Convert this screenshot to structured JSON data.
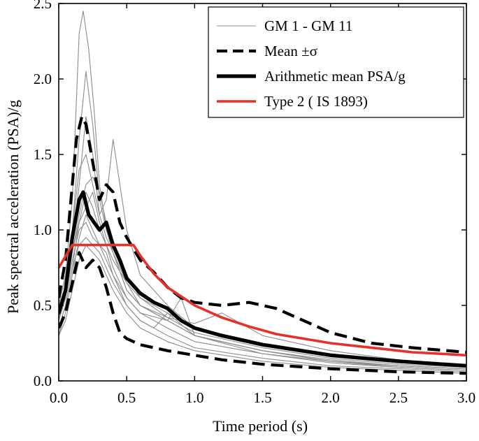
{
  "chart_data": {
    "type": "line",
    "title": "",
    "xlabel": "Time period (s)",
    "ylabel": "Peak spectral acceleration (PSA)/g",
    "xlim": [
      0,
      3
    ],
    "ylim": [
      0,
      2.5
    ],
    "xticks": [
      "0.0",
      "0.5",
      "1.0",
      "1.5",
      "2.0",
      "2.5",
      "3.0"
    ],
    "yticks": [
      "0.0",
      "0.5",
      "1.0",
      "1.5",
      "2.0",
      "2.5"
    ],
    "xtick_values": [
      0,
      0.5,
      1,
      1.5,
      2,
      2.5,
      3
    ],
    "ytick_values": [
      0,
      0.5,
      1,
      1.5,
      2,
      2.5
    ],
    "grid": false,
    "legend_position": "top-right",
    "legend": [
      {
        "label": "GM 1 - GM 11",
        "style": "thin-gray"
      },
      {
        "label": "Mean ±σ",
        "style": "dashed-black"
      },
      {
        "label": "Arithmetic mean PSA/g",
        "style": "thick-black"
      },
      {
        "label": "Type 2 ( IS 1893)",
        "style": "red"
      }
    ],
    "colors": {
      "records": "#8c8c8c",
      "mean": "#000000",
      "code": "#e8302a"
    },
    "series": [
      {
        "name": "GM 1 - GM 11",
        "style": "thin-gray",
        "x": [
          0,
          0.05,
          0.1,
          0.15,
          0.18,
          0.22,
          0.26,
          0.3,
          0.35,
          0.4,
          0.5,
          0.6,
          0.8,
          1,
          1.5,
          2,
          2.5,
          3
        ],
        "y": [
          0.5,
          0.7,
          1.2,
          2.3,
          2.45,
          2.2,
          1.8,
          1.3,
          1,
          0.85,
          0.6,
          0.5,
          0.4,
          0.3,
          0.2,
          0.13,
          0.1,
          0.08
        ]
      },
      {
        "style": "thin-gray",
        "x": [
          0,
          0.05,
          0.1,
          0.15,
          0.2,
          0.25,
          0.3,
          0.35,
          0.4,
          0.5,
          0.6,
          0.8,
          1,
          1.5,
          2,
          2.5,
          3
        ],
        "y": [
          0.45,
          0.6,
          1,
          1.6,
          2.05,
          1.7,
          1.2,
          1,
          0.9,
          0.7,
          0.55,
          0.42,
          0.32,
          0.22,
          0.15,
          0.11,
          0.09
        ]
      },
      {
        "style": "thin-gray",
        "x": [
          0,
          0.05,
          0.1,
          0.15,
          0.2,
          0.25,
          0.3,
          0.35,
          0.4,
          0.5,
          0.6,
          0.8,
          1,
          1.5,
          2,
          2.5,
          3
        ],
        "y": [
          0.4,
          0.55,
          0.9,
          1.3,
          1.75,
          1.5,
          1.1,
          1.2,
          1.6,
          1,
          0.7,
          0.5,
          0.35,
          0.25,
          0.16,
          0.12,
          0.1
        ]
      },
      {
        "style": "thin-gray",
        "x": [
          0,
          0.05,
          0.1,
          0.15,
          0.2,
          0.25,
          0.3,
          0.35,
          0.4,
          0.5,
          0.6,
          0.8,
          1,
          1.5,
          2,
          2.5,
          3
        ],
        "y": [
          0.5,
          0.7,
          1,
          1.4,
          1.5,
          1.3,
          1.1,
          0.95,
          0.85,
          0.65,
          0.5,
          0.4,
          0.3,
          0.2,
          0.14,
          0.1,
          0.08
        ]
      },
      {
        "style": "thin-gray",
        "x": [
          0,
          0.05,
          0.1,
          0.15,
          0.2,
          0.25,
          0.3,
          0.35,
          0.4,
          0.5,
          0.6,
          0.8,
          1,
          1.5,
          2,
          2.5,
          3
        ],
        "y": [
          0.35,
          0.5,
          0.75,
          1.05,
          1.25,
          1.15,
          1,
          0.9,
          0.75,
          0.55,
          0.45,
          0.35,
          0.26,
          0.18,
          0.13,
          0.09,
          0.07
        ]
      },
      {
        "style": "thin-gray",
        "x": [
          0,
          0.05,
          0.1,
          0.15,
          0.2,
          0.25,
          0.3,
          0.35,
          0.4,
          0.5,
          0.6,
          0.7,
          0.8,
          1,
          1.5,
          2,
          2.5,
          3
        ],
        "y": [
          0.3,
          0.45,
          0.7,
          0.95,
          1.1,
          1,
          0.9,
          0.85,
          0.7,
          0.5,
          0.4,
          0.35,
          0.45,
          0.3,
          0.18,
          0.12,
          0.09,
          0.07
        ]
      },
      {
        "style": "thin-gray",
        "x": [
          0,
          0.05,
          0.1,
          0.15,
          0.2,
          0.25,
          0.3,
          0.35,
          0.4,
          0.5,
          0.6,
          0.8,
          1,
          1.2,
          1.5,
          2,
          2.5,
          3
        ],
        "y": [
          0.4,
          0.6,
          0.85,
          1.1,
          1.3,
          1.35,
          1.25,
          1.05,
          0.85,
          0.6,
          0.5,
          0.42,
          0.38,
          0.45,
          0.3,
          0.2,
          0.14,
          0.1
        ]
      },
      {
        "style": "thin-gray",
        "x": [
          0,
          0.05,
          0.1,
          0.15,
          0.2,
          0.25,
          0.3,
          0.35,
          0.4,
          0.5,
          0.6,
          0.8,
          1,
          1.5,
          2,
          2.5,
          3
        ],
        "y": [
          0.35,
          0.5,
          0.75,
          0.9,
          0.95,
          0.9,
          0.85,
          0.75,
          0.65,
          0.5,
          0.4,
          0.3,
          0.22,
          0.15,
          0.1,
          0.08,
          0.06
        ]
      },
      {
        "style": "thin-gray",
        "x": [
          0,
          0.05,
          0.1,
          0.15,
          0.2,
          0.25,
          0.3,
          0.35,
          0.4,
          0.5,
          0.6,
          0.8,
          1,
          1.5,
          2,
          2.5,
          3
        ],
        "y": [
          0.3,
          0.4,
          0.6,
          0.8,
          0.9,
          0.85,
          0.8,
          0.7,
          0.6,
          0.45,
          0.35,
          0.26,
          0.2,
          0.13,
          0.09,
          0.07,
          0.05
        ]
      },
      {
        "style": "thin-gray",
        "x": [
          0,
          0.05,
          0.1,
          0.15,
          0.2,
          0.25,
          0.3,
          0.35,
          0.4,
          0.5,
          0.6,
          0.8,
          1,
          1.5,
          2,
          2.5,
          3
        ],
        "y": [
          0.45,
          0.6,
          0.85,
          1.05,
          1.15,
          1.25,
          1.05,
          0.9,
          0.8,
          0.65,
          0.55,
          0.45,
          0.35,
          0.25,
          0.18,
          0.13,
          0.1
        ]
      },
      {
        "style": "thin-gray",
        "x": [
          0,
          0.05,
          0.1,
          0.15,
          0.2,
          0.25,
          0.3,
          0.35,
          0.4,
          0.5,
          0.6,
          0.8,
          0.9,
          1,
          1.5,
          2,
          2.5,
          3
        ],
        "y": [
          0.4,
          0.55,
          0.8,
          1,
          1.05,
          0.95,
          0.9,
          0.8,
          0.7,
          0.55,
          0.45,
          0.4,
          0.55,
          0.3,
          0.2,
          0.13,
          0.1,
          0.08
        ]
      },
      {
        "name": "Mean ±σ",
        "style": "dashed-black",
        "x": [
          0,
          0.05,
          0.1,
          0.13,
          0.17,
          0.2,
          0.25,
          0.3,
          0.35,
          0.4,
          0.45,
          0.5,
          0.6,
          0.7,
          0.8,
          0.9,
          1,
          1.2,
          1.4,
          1.6,
          1.8,
          2,
          2.3,
          2.6,
          3
        ],
        "y": [
          0.55,
          0.8,
          1.3,
          1.6,
          1.75,
          1.7,
          1.45,
          1.2,
          1.3,
          1.25,
          1.05,
          0.95,
          0.8,
          0.72,
          0.62,
          0.55,
          0.52,
          0.5,
          0.52,
          0.48,
          0.4,
          0.32,
          0.25,
          0.22,
          0.19
        ]
      },
      {
        "style": "dashed-black",
        "x": [
          0,
          0.05,
          0.1,
          0.15,
          0.2,
          0.25,
          0.3,
          0.35,
          0.4,
          0.45,
          0.5,
          0.6,
          0.8,
          1,
          1.2,
          1.5,
          2,
          2.5,
          3
        ],
        "y": [
          0.35,
          0.45,
          0.65,
          0.85,
          0.75,
          0.8,
          0.75,
          0.62,
          0.45,
          0.32,
          0.28,
          0.24,
          0.2,
          0.17,
          0.14,
          0.11,
          0.08,
          0.06,
          0.05
        ]
      },
      {
        "name": "Arithmetic mean PSA/g",
        "style": "thick-black",
        "x": [
          0,
          0.05,
          0.1,
          0.15,
          0.18,
          0.22,
          0.26,
          0.3,
          0.35,
          0.4,
          0.45,
          0.5,
          0.6,
          0.7,
          0.8,
          0.9,
          1,
          1.2,
          1.5,
          2,
          2.5,
          3
        ],
        "y": [
          0.45,
          0.6,
          0.95,
          1.2,
          1.25,
          1.1,
          1.05,
          1,
          1.05,
          0.9,
          0.8,
          0.68,
          0.58,
          0.52,
          0.48,
          0.4,
          0.35,
          0.3,
          0.24,
          0.17,
          0.13,
          0.1
        ]
      },
      {
        "name": "Type 2 ( IS 1893)",
        "style": "red",
        "x": [
          0,
          0.1,
          0.55,
          0.6,
          0.7,
          0.8,
          0.9,
          1,
          1.2,
          1.4,
          1.6,
          1.8,
          2,
          2.2,
          2.4,
          2.6,
          2.8,
          3
        ],
        "y": [
          0.75,
          0.9,
          0.9,
          0.83,
          0.71,
          0.62,
          0.56,
          0.5,
          0.42,
          0.36,
          0.31,
          0.28,
          0.25,
          0.23,
          0.21,
          0.19,
          0.18,
          0.17
        ]
      }
    ]
  }
}
